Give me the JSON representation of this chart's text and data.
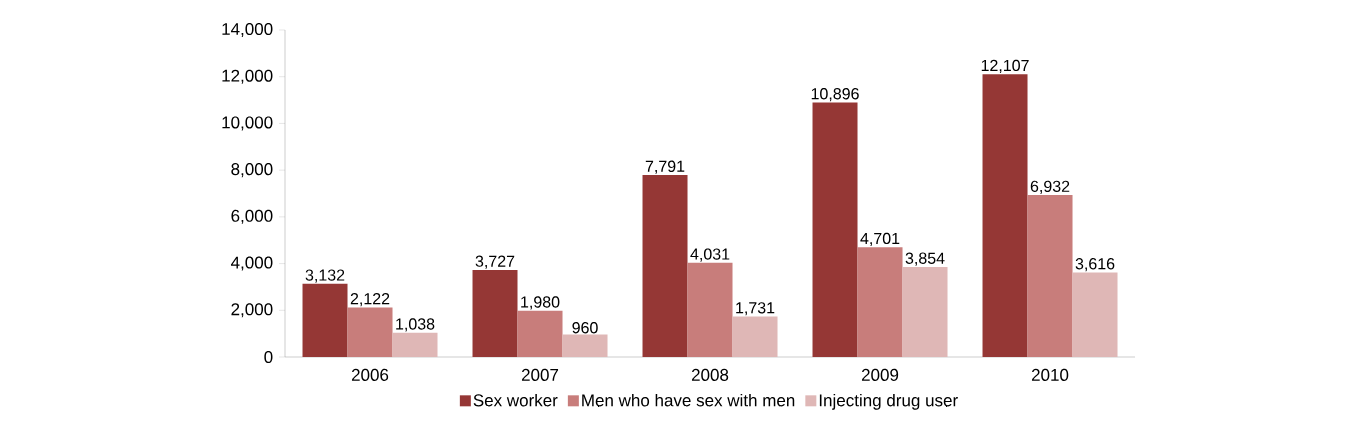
{
  "chart_data": {
    "type": "bar",
    "categories": [
      "2006",
      "2007",
      "2008",
      "2009",
      "2010"
    ],
    "series": [
      {
        "name": "Sex worker",
        "color": "#953735",
        "values": [
          3132,
          3727,
          7791,
          10896,
          12107
        ],
        "value_labels": [
          "3,132",
          "3,727",
          "7,791",
          "10,896",
          "12,107"
        ]
      },
      {
        "name": "Men who have sex with men",
        "color": "#c87d7b",
        "values": [
          2122,
          1980,
          4031,
          4701,
          6932
        ],
        "value_labels": [
          "2,122",
          "1,980",
          "4,031",
          "4,701",
          "6,932"
        ]
      },
      {
        "name": "Injecting drug user",
        "color": "#dfb7b6",
        "values": [
          1038,
          960,
          1731,
          3854,
          3616
        ],
        "value_labels": [
          "1,038",
          "960",
          "1,731",
          "3,854",
          "3,616"
        ]
      }
    ],
    "ylim": [
      0,
      14000
    ],
    "yticks": [
      0,
      {
        "value": 2000,
        "label": "2,000"
      },
      {
        "value": 4000,
        "label": "4,000"
      },
      {
        "value": 6000,
        "label": "6,000"
      },
      {
        "value": 8000,
        "label": "8,000"
      },
      {
        "value": 10000,
        "label": "10,000"
      },
      {
        "value": 12000,
        "label": "12,000"
      },
      {
        "value": 14000,
        "label": "14,000"
      }
    ],
    "grid": false,
    "legend": "bottom"
  }
}
